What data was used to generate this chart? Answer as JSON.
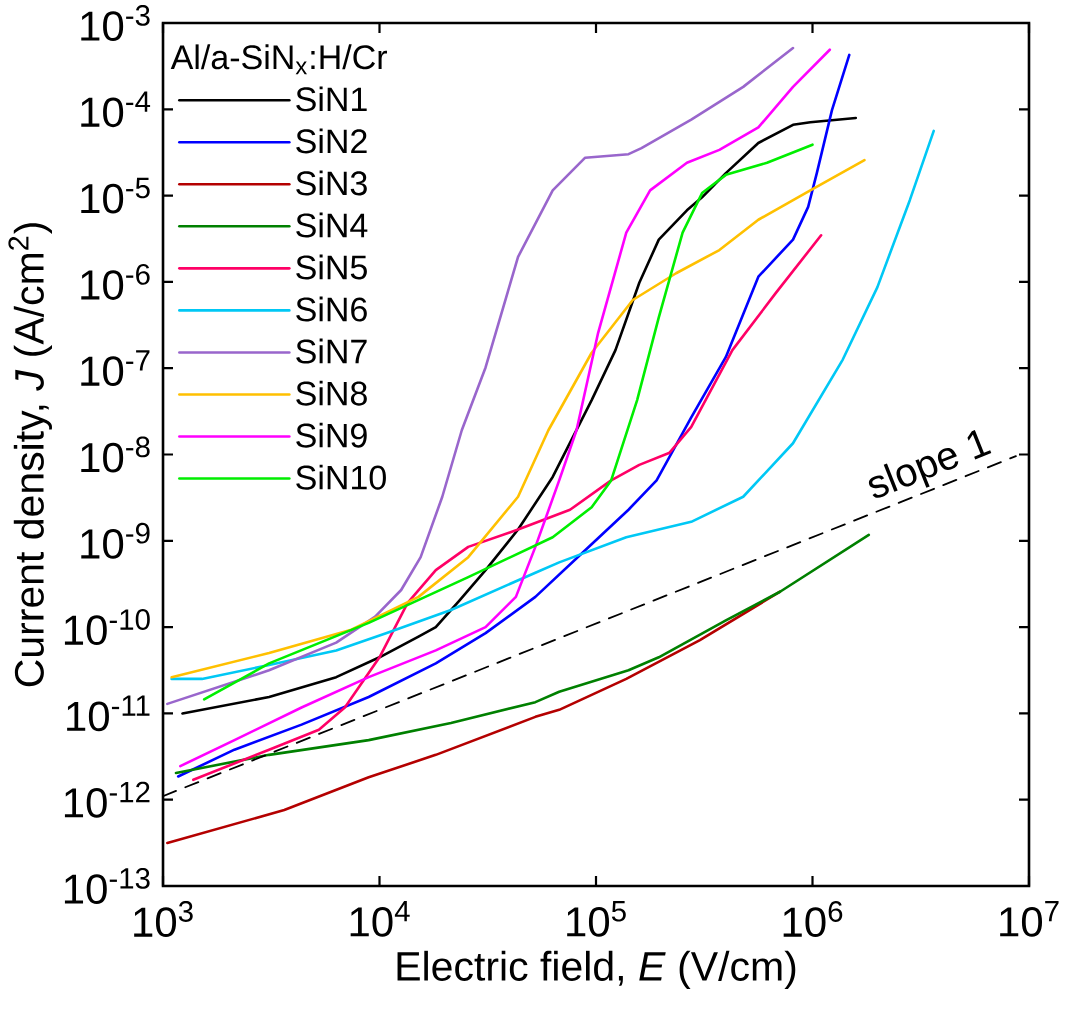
{
  "chart_data": {
    "type": "line",
    "xlabel": "Electric field, *E* (V/cm)",
    "ylabel": "Current density, *J* (A/cm$^{2}$)",
    "legend_title": "Al/a-SiN$_{x}$:H/Cr",
    "log": "xy",
    "legend": "top left",
    "xlim": [
      1000,
      10000000
    ],
    "ylim": [
      1e-13,
      0.001
    ],
    "xticks": [
      {
        "value": 1000,
        "label": "10$^{3}$"
      },
      {
        "value": 10000,
        "label": "10$^{4}$"
      },
      {
        "value": 100000,
        "label": "10$^{5}$"
      },
      {
        "value": 1000000,
        "label": "10$^{6}$"
      },
      {
        "value": 10000000,
        "label": "10$^{7}$"
      }
    ],
    "yticks": [
      {
        "value": 1e-13,
        "label": "10$^{-13}$"
      },
      {
        "value": 1e-12,
        "label": "10$^{-12}$"
      },
      {
        "value": 1e-11,
        "label": "10$^{-11}$"
      },
      {
        "value": 1e-10,
        "label": "10$^{-10}$"
      },
      {
        "value": 1e-09,
        "label": "10$^{-9}$"
      },
      {
        "value": 1e-08,
        "label": "10$^{-8}$"
      },
      {
        "value": 1e-07,
        "label": "10$^{-7}$"
      },
      {
        "value": 1e-06,
        "label": "10$^{-6}$"
      },
      {
        "value": 1e-05,
        "label": "10$^{-5}$"
      },
      {
        "value": 0.0001,
        "label": "10$^{-4}$"
      },
      {
        "value": 0.001,
        "label": "10$^{-3}$"
      }
    ],
    "series": [
      {
        "name": "SiN1",
        "color": "#000000",
        "x": [
          1230,
          3090,
          6310,
          10000,
          15140,
          18200,
          23440,
          30900,
          43650,
          63100,
          95500,
          123000,
          158500,
          195000,
          263000,
          309000,
          398000,
          562000,
          813000,
          977000,
          1585000
        ],
        "values": [
          1e-11,
          1.55e-11,
          2.63e-11,
          4.47e-11,
          7.76e-11,
          1e-10,
          2.04e-10,
          4.57e-10,
          1.35e-09,
          5.5e-09,
          4.27e-08,
          1.62e-07,
          9.77e-07,
          3.09e-06,
          6.76e-06,
          9.55e-06,
          1.82e-05,
          4.07e-05,
          6.61e-05,
          7.08e-05,
          7.94e-05
        ]
      },
      {
        "name": "SiN2",
        "color": "#0000ff",
        "x": [
          1175,
          2138,
          4365,
          8913,
          18200,
          30900,
          52480,
          89130,
          141300,
          190500,
          275400,
          398100,
          562300,
          812800,
          955000,
          1047000,
          1230000,
          1479000
        ],
        "values": [
          1.86e-12,
          3.8e-12,
          7.41e-12,
          1.55e-11,
          3.8e-11,
          8.51e-11,
          2.24e-10,
          7.76e-10,
          2.29e-09,
          5.01e-09,
          2.69e-08,
          1.35e-07,
          1.15e-06,
          3.09e-06,
          7.41e-06,
          1.82e-05,
          9.77e-05,
          0.000427
        ]
      },
      {
        "name": "SiN3",
        "color": "#b40000",
        "x": [
          1047,
          3631,
          8913,
          18200,
          52480,
          67610,
          138000,
          302000,
          708000
        ],
        "values": [
          3.16e-13,
          7.59e-13,
          1.82e-12,
          3.31e-12,
          9.12e-12,
          1.1e-11,
          2.51e-11,
          7.08e-11,
          2.57e-10
        ]
      },
      {
        "name": "SiN4",
        "color": "#008000",
        "x": [
          1148,
          3090,
          8913,
          21380,
          52480,
          67610,
          141300,
          195000,
          398100,
          708000,
          1820000
        ],
        "values": [
          2.04e-12,
          3.31e-12,
          4.9e-12,
          7.76e-12,
          1.35e-11,
          1.78e-11,
          3.16e-11,
          4.47e-11,
          1.2e-10,
          2.57e-10,
          1.17e-09
        ]
      },
      {
        "name": "SiN5",
        "color": "#ff0066",
        "x": [
          1380,
          3090,
          5248,
          6918,
          10000,
          13490,
          18200,
          25700,
          43650,
          75860,
          117500,
          158500,
          218800,
          275400,
          426600,
          676100,
          1096000
        ],
        "values": [
          1.7e-12,
          3.8e-12,
          6.46e-12,
          1.17e-11,
          4.47e-11,
          1.91e-10,
          4.57e-10,
          8.51e-10,
          1.35e-09,
          2.29e-09,
          5.01e-09,
          7.59e-09,
          1.05e-08,
          2.09e-08,
          1.62e-07,
          7.41e-07,
          3.47e-06
        ]
      },
      {
        "name": "SiN6",
        "color": "#00c8f5",
        "x": [
          1096,
          1514,
          3090,
          6310,
          10720,
          21380,
          52480,
          67610,
          138000,
          275400,
          478600,
          812800,
          1380000,
          1995000,
          2818000,
          3631000
        ],
        "values": [
          2.51e-11,
          2.51e-11,
          3.63e-11,
          5.37e-11,
          8.51e-11,
          1.58e-10,
          4.27e-10,
          5.62e-10,
          1.1e-09,
          1.66e-09,
          3.24e-09,
          1.35e-08,
          1.26e-07,
          8.71e-07,
          8.91e-06,
          5.62e-05
        ]
      },
      {
        "name": "SiN7",
        "color": "#9966cc",
        "x": [
          1047,
          3090,
          6310,
          9550,
          12590,
          15490,
          19500,
          23990,
          30900,
          43650,
          63100,
          89130,
          141300,
          162200,
          275400,
          478600,
          812800
        ],
        "values": [
          1.29e-11,
          3.16e-11,
          6.61e-11,
          1.32e-10,
          2.69e-10,
          6.46e-10,
          3.24e-09,
          1.91e-08,
          1.02e-07,
          1.95e-06,
          1.15e-05,
          2.75e-05,
          3.02e-05,
          3.55e-05,
          7.59e-05,
          0.000182,
          0.000513
        ]
      },
      {
        "name": "SiN8",
        "color": "#ffc000",
        "x": [
          1096,
          3090,
          7413,
          15140,
          25700,
          43650,
          60260,
          95500,
          147900,
          234400,
          371500,
          562300,
          977200,
          1738000
        ],
        "values": [
          2.63e-11,
          5.01e-11,
          9.33e-11,
          2.24e-10,
          6.46e-10,
          3.24e-09,
          1.91e-08,
          1.51e-07,
          6.17e-07,
          1.26e-06,
          2.34e-06,
          5.25e-06,
          1.15e-05,
          2.57e-05
        ]
      },
      {
        "name": "SiN9",
        "color": "#ff00ff",
        "x": [
          1202,
          2138,
          4365,
          8913,
          18200,
          30900,
          42660,
          52480,
          67610,
          81280,
          102300,
          138000,
          177800,
          263000,
          371500,
          562300,
          812800,
          1202000
        ],
        "values": [
          2.45e-12,
          4.9e-12,
          1.17e-11,
          2.63e-11,
          5.37e-11,
          1e-10,
          2.24e-10,
          8.51e-10,
          5.01e-09,
          1.91e-08,
          2.57e-07,
          3.72e-06,
          1.15e-05,
          2.4e-05,
          3.39e-05,
          6.17e-05,
          0.000182,
          0.00049
        ]
      },
      {
        "name": "SiN10",
        "color": "#00ee00",
        "x": [
          1549,
          3090,
          8913,
          25700,
          63100,
          95500,
          117500,
          154900,
          195000,
          251200,
          309000,
          398100,
          616600,
          1000000
        ],
        "values": [
          1.45e-11,
          3.8e-11,
          1.12e-10,
          3.8e-10,
          1.1e-09,
          2.45e-09,
          5.01e-09,
          4.27e-08,
          3.89e-07,
          3.72e-06,
          1.07e-05,
          1.74e-05,
          2.4e-05,
          3.89e-05
        ]
      },
      {
        "type": "line",
        "line_style": "dashed",
        "color": "#000000",
        "x": [
          1000,
          8700000
        ],
        "values": [
          1.1e-12,
          9.57e-09
        ]
      }
    ],
    "annotations": [
      "slope 1"
    ]
  }
}
